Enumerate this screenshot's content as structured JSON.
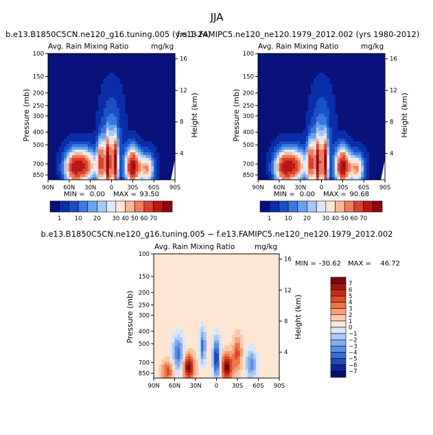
{
  "chart_data": {
    "type": "heatmap",
    "title": "JJA",
    "left_label_text": "mg/kg",
    "panels": [
      {
        "id": "top-left",
        "case_title": "b.e13.B1850C5CN.ne120_g16.tuning.005 (yrs 1-24)",
        "variable": "Avg. Rain Mixing Ratio",
        "units": "mg/kg",
        "ylabel": "Pressure (mb)",
        "y2label": "Height (km)",
        "xticks": [
          "90N",
          "60N",
          "30N",
          "0",
          "30S",
          "60S",
          "90S"
        ],
        "pressure_ticks": [
          100,
          150,
          200,
          250,
          300,
          400,
          500,
          700,
          850
        ],
        "height_ticks": [
          16,
          12,
          8,
          4
        ],
        "stats": {
          "min_label": "MIN =",
          "min": "0.00",
          "max_label": "MAX =",
          "max": "93.50"
        },
        "colorbar": {
          "levels": [
            "1",
            "10",
            "20",
            "30",
            "40",
            "50",
            "60",
            "70"
          ]
        }
      },
      {
        "id": "top-right",
        "case_title": "f.e13.FAMIPC5.ne120_ne120.1979_2012.002 (yrs 1980-2012)",
        "variable": "Avg. Rain Mixing Ratio",
        "units": "mg/kg",
        "ylabel": "Pressure (mb)",
        "y2label": "Height (km)",
        "xticks": [
          "90N",
          "60N",
          "30N",
          "0",
          "30S",
          "60S",
          "90S"
        ],
        "pressure_ticks": [
          100,
          150,
          200,
          250,
          300,
          400,
          500,
          700,
          850
        ],
        "height_ticks": [
          16,
          12,
          8,
          4
        ],
        "stats": {
          "min_label": "MIN =",
          "min": "0.00",
          "max_label": "MAX =",
          "max": "90.68"
        },
        "colorbar": {
          "levels": [
            "1",
            "10",
            "20",
            "30",
            "40",
            "50",
            "60",
            "70"
          ]
        }
      },
      {
        "id": "bottom-diff",
        "case_title": "b.e13.B1850C5CN.ne120_g16.tuning.005 − f.e13.FAMIPC5.ne120_ne120.1979_2012.002",
        "variable": "Avg. Rain Mixing Ratio",
        "units": "mg/kg",
        "ylabel": "Pressure (mb)",
        "y2label": "Height (km)",
        "xticks": [
          "90N",
          "60N",
          "30N",
          "0",
          "30S",
          "60S",
          "90S"
        ],
        "pressure_ticks": [
          100,
          150,
          200,
          250,
          300,
          400,
          500,
          700,
          850
        ],
        "height_ticks": [
          16,
          12,
          8,
          4
        ],
        "stats": {
          "min_label": "MIN =",
          "min": "-30.62",
          "max_label": "MAX =",
          "max": "46.72"
        },
        "colorbar": {
          "levels": [
            "7",
            "6",
            "5",
            "4",
            "3",
            "2",
            "1",
            "0",
            "−1",
            "−2",
            "−3",
            "−4",
            "−5",
            "−6",
            "−7"
          ]
        }
      }
    ]
  },
  "colors": {
    "abs_scale": [
      "#08107a",
      "#0a2ea8",
      "#1850c8",
      "#3a78e0",
      "#6aa2ee",
      "#a6c8f6",
      "#dde9fb",
      "#fde7d5",
      "#f7b89a",
      "#ec7e5e",
      "#d8432f",
      "#b81818",
      "#8e0810"
    ],
    "diff_scale": [
      "#7a0a0c",
      "#a3160f",
      "#c32b18",
      "#dd4b25",
      "#ee7548",
      "#f6a07a",
      "#fac8ac",
      "#fde6d4",
      "#d8e6fa",
      "#afcaf4",
      "#85acec",
      "#5c8ee4",
      "#3a6ed8",
      "#2249c0",
      "#10229a",
      "#060c6a"
    ],
    "abs_background": "#08107a",
    "diff_background": "#fde6d4"
  }
}
